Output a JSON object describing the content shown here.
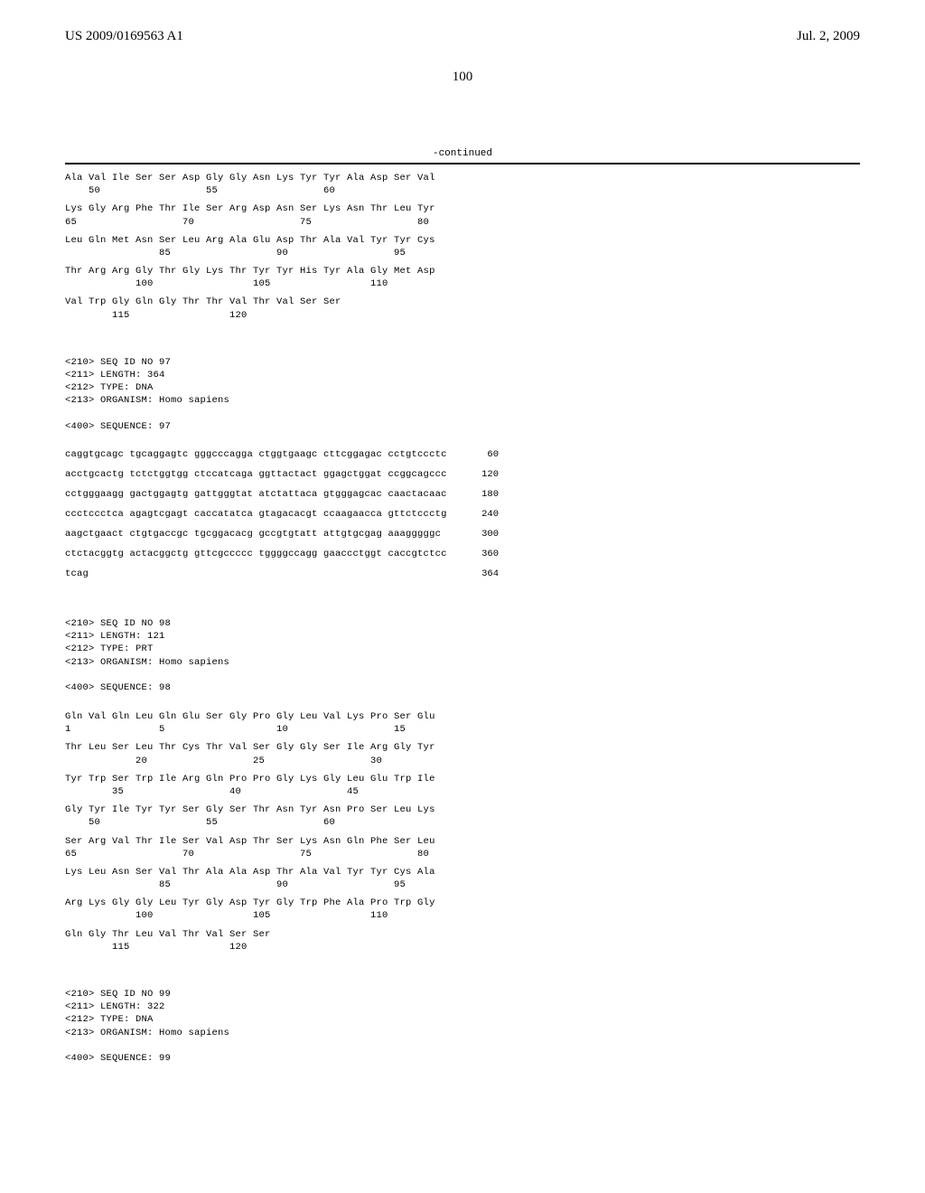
{
  "header": {
    "pub_number": "US 2009/0169563 A1",
    "pub_date": "Jul. 2, 2009"
  },
  "page_number": "100",
  "continued_label": "-continued",
  "protein_seq_96": {
    "rows": [
      {
        "aa": "Ala Val Ile Ser Ser Asp Gly Gly Asn Lys Tyr Tyr Ala Asp Ser Val",
        "nums": "    50                  55                  60"
      },
      {
        "aa": "Lys Gly Arg Phe Thr Ile Ser Arg Asp Asn Ser Lys Asn Thr Leu Tyr",
        "nums": "65                  70                  75                  80"
      },
      {
        "aa": "Leu Gln Met Asn Ser Leu Arg Ala Glu Asp Thr Ala Val Tyr Tyr Cys",
        "nums": "                85                  90                  95"
      },
      {
        "aa": "Thr Arg Arg Gly Thr Gly Lys Thr Tyr Tyr His Tyr Ala Gly Met Asp",
        "nums": "            100                 105                 110"
      },
      {
        "aa": "Val Trp Gly Gln Gly Thr Thr Val Thr Val Ser Ser",
        "nums": "        115                 120"
      }
    ]
  },
  "seq97_header": {
    "l1": "<210> SEQ ID NO 97",
    "l2": "<211> LENGTH: 364",
    "l3": "<212> TYPE: DNA",
    "l4": "<213> ORGANISM: Homo sapiens",
    "l5": "<400> SEQUENCE: 97"
  },
  "dna_seq_97": [
    {
      "seq": "caggtgcagc tgcaggagtc gggcccagga ctggtgaagc cttcggagac cctgtccctc",
      "num": "60"
    },
    {
      "seq": "acctgcactg tctctggtgg ctccatcaga ggttactact ggagctggat ccggcagccc",
      "num": "120"
    },
    {
      "seq": "cctgggaagg gactggagtg gattgggtat atctattaca gtgggagcac caactacaac",
      "num": "180"
    },
    {
      "seq": "ccctccctca agagtcgagt caccatatca gtagacacgt ccaagaacca gttctccctg",
      "num": "240"
    },
    {
      "seq": "aagctgaact ctgtgaccgc tgcggacacg gccgtgtatt attgtgcgag aaagggggc",
      "num": "300"
    },
    {
      "seq": "ctctacggtg actacggctg gttcgccccc tggggccagg gaaccctggt caccgtctcc",
      "num": "360"
    },
    {
      "seq": "tcag",
      "num": "364"
    }
  ],
  "seq98_header": {
    "l1": "<210> SEQ ID NO 98",
    "l2": "<211> LENGTH: 121",
    "l3": "<212> TYPE: PRT",
    "l4": "<213> ORGANISM: Homo sapiens",
    "l5": "<400> SEQUENCE: 98"
  },
  "protein_seq_98": {
    "rows": [
      {
        "aa": "Gln Val Gln Leu Gln Glu Ser Gly Pro Gly Leu Val Lys Pro Ser Glu",
        "nums": "1               5                   10                  15"
      },
      {
        "aa": "Thr Leu Ser Leu Thr Cys Thr Val Ser Gly Gly Ser Ile Arg Gly Tyr",
        "nums": "            20                  25                  30"
      },
      {
        "aa": "Tyr Trp Ser Trp Ile Arg Gln Pro Pro Gly Lys Gly Leu Glu Trp Ile",
        "nums": "        35                  40                  45"
      },
      {
        "aa": "Gly Tyr Ile Tyr Tyr Ser Gly Ser Thr Asn Tyr Asn Pro Ser Leu Lys",
        "nums": "    50                  55                  60"
      },
      {
        "aa": "Ser Arg Val Thr Ile Ser Val Asp Thr Ser Lys Asn Gln Phe Ser Leu",
        "nums": "65                  70                  75                  80"
      },
      {
        "aa": "Lys Leu Asn Ser Val Thr Ala Ala Asp Thr Ala Val Tyr Tyr Cys Ala",
        "nums": "                85                  90                  95"
      },
      {
        "aa": "Arg Lys Gly Gly Leu Tyr Gly Asp Tyr Gly Trp Phe Ala Pro Trp Gly",
        "nums": "            100                 105                 110"
      },
      {
        "aa": "Gln Gly Thr Leu Val Thr Val Ser Ser",
        "nums": "        115                 120"
      }
    ]
  },
  "seq99_header": {
    "l1": "<210> SEQ ID NO 99",
    "l2": "<211> LENGTH: 322",
    "l3": "<212> TYPE: DNA",
    "l4": "<213> ORGANISM: Homo sapiens",
    "l5": "<400> SEQUENCE: 99"
  }
}
